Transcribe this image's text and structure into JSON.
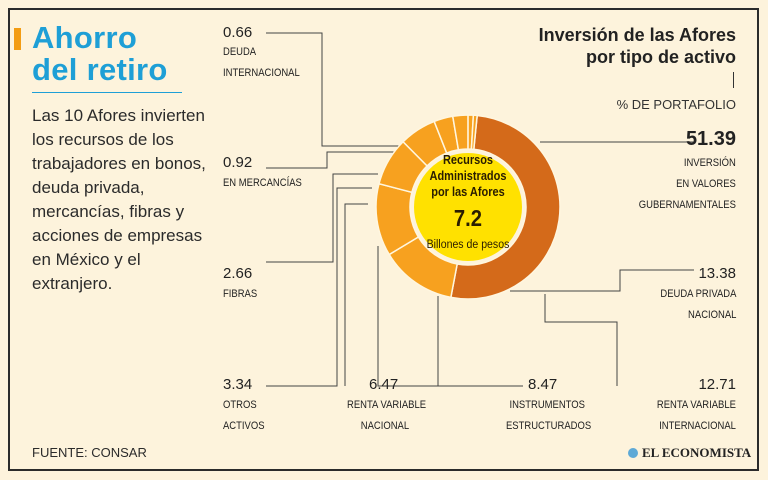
{
  "colors": {
    "accent": "#f39c12",
    "title": "#1e9fd6",
    "rule": "#1e9fd6",
    "ring_large": "#d46a1a",
    "ring_light": "#f7a11f",
    "center": "#ffe100"
  },
  "panel": {
    "title_line1": "Ahorro",
    "title_line2": "del retiro",
    "intro": "Las 10 Afores invierten los recursos de los trabajadores en bonos, deuda privada, mercancías, fibras y acciones de empresas en México y el extranjero.",
    "source": "FUENTE: CONSAR",
    "logo": "EL ECONOMISTA"
  },
  "chart_data": {
    "type": "pie",
    "donut": true,
    "title": "Inversión de las Afores por tipo de activo",
    "unit": "% DE PORTAFOLIO",
    "center": {
      "line1": "Recursos",
      "line2": "Administrados",
      "line3": "por las Afores",
      "value": "7.2",
      "unit": "Billones de pesos"
    },
    "slices": [
      {
        "name": "INVERSIÓN EN VALORES GUBERNAMENTALES",
        "line1": "INVERSIÓN",
        "line2": "EN VALORES",
        "line3": "GUBERNAMENTALES",
        "value": 51.39
      },
      {
        "name": "DEUDA PRIVADA NACIONAL",
        "line1": "DEUDA PRIVADA",
        "line2": "NACIONAL",
        "value": 13.38
      },
      {
        "name": "RENTA VARIABLE INTERNACIONAL",
        "line1": "RENTA VARIABLE",
        "line2": "INTERNACIONAL",
        "value": 12.71
      },
      {
        "name": "INSTRUMENTOS ESTRUCTURADOS",
        "line1": "INSTRUMENTOS",
        "line2": "ESTRUCTURADOS",
        "value": 8.47
      },
      {
        "name": "RENTA VARIABLE NACIONAL",
        "line1": "RENTA VARIABLE",
        "line2": "NACIONAL",
        "value": 6.47
      },
      {
        "name": "OTROS ACTIVOS",
        "line1": "OTROS",
        "line2": "ACTIVOS",
        "value": 3.34
      },
      {
        "name": "FIBRAS",
        "line1": "FIBRAS",
        "value": 2.66
      },
      {
        "name": "EN MERCANCÍAS",
        "line1": "EN MERCANCÍAS",
        "value": 0.92
      },
      {
        "name": "DEUDA INTERNACIONAL",
        "line1": "DEUDA",
        "line2": "INTERNACIONAL",
        "value": 0.66
      }
    ]
  }
}
